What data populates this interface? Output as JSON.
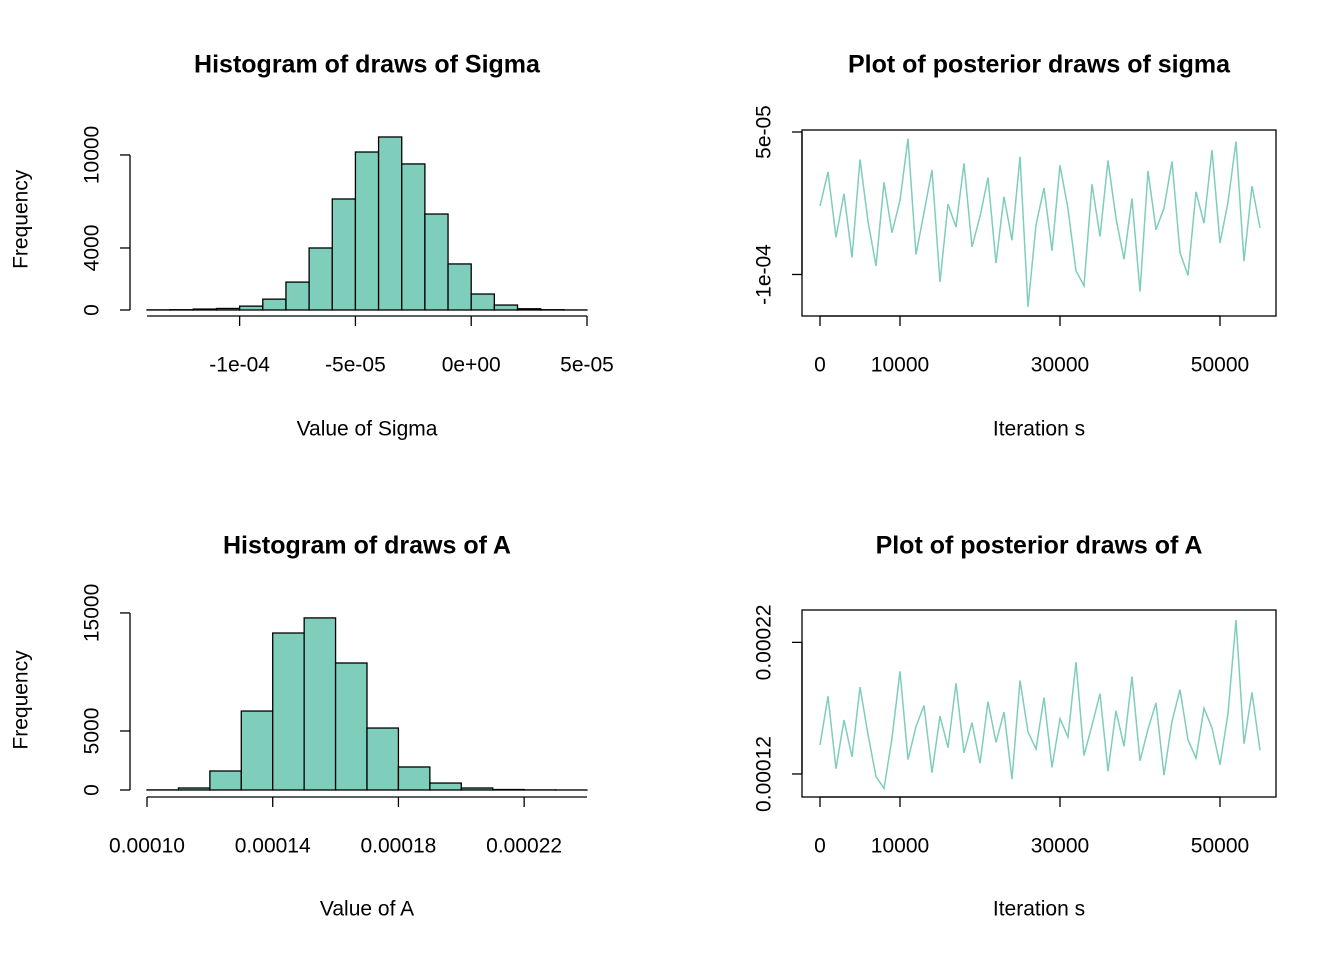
{
  "chart_data": [
    {
      "type": "histogram",
      "title": "Histogram of draws of Sigma",
      "xlabel": "Value of Sigma",
      "ylabel": "Frequency",
      "bins": [
        -0.00014,
        -0.00013,
        -0.00012,
        -0.00011,
        -0.0001,
        -9e-05,
        -8e-05,
        -7e-05,
        -6e-05,
        -5e-05,
        -4e-05,
        -3e-05,
        -2e-05,
        -1e-05,
        0,
        1e-05,
        2e-05,
        3e-05,
        4e-05,
        5e-05
      ],
      "values": [
        10,
        20,
        60,
        100,
        250,
        700,
        1800,
        4000,
        7160,
        10190,
        11160,
        9420,
        6190,
        2970,
        1030,
        320,
        80,
        20,
        5
      ],
      "color": "#7fcdbb",
      "xlim": [
        -0.00014,
        5e-05
      ],
      "ylim": [
        0,
        11700
      ],
      "xticks": [
        {
          "value": -0.0001,
          "label": "-1e-04"
        },
        {
          "value": -5e-05,
          "label": "-5e-05"
        },
        {
          "value": 0,
          "label": "0e+00"
        },
        {
          "value": 5e-05,
          "label": "5e-05"
        }
      ],
      "yticks": [
        0,
        4000,
        10000
      ]
    },
    {
      "type": "line",
      "title": "Plot of posterior draws of sigma",
      "xlabel": "Iteration s",
      "x": [
        0,
        1000,
        2000,
        3000,
        4000,
        5000,
        6000,
        7000,
        8000,
        9000,
        10000,
        11000,
        12000,
        13000,
        14000,
        15000,
        16000,
        17000,
        18000,
        19000,
        20000,
        21000,
        22000,
        23000,
        24000,
        25000,
        26000,
        27000,
        28000,
        29000,
        30000,
        31000,
        32000,
        33000,
        34000,
        35000,
        36000,
        37000,
        38000,
        39000,
        40000,
        41000,
        42000,
        43000,
        44000,
        45000,
        46000,
        47000,
        48000,
        49000,
        50000,
        51000,
        52000,
        53000,
        54000,
        55000
      ],
      "values": [
        -2.8e-05,
        8e-06,
        -6.1e-05,
        -1.5e-05,
        -8.2e-05,
        2.1e-05,
        -4.4e-05,
        -9.1e-05,
        -3e-06,
        -5.6e-05,
        -2.2e-05,
        4.3e-05,
        -7.9e-05,
        -3.5e-05,
        1e-05,
        -0.000108,
        -2.6e-05,
        -5e-05,
        1.7e-05,
        -7.1e-05,
        -3.9e-05,
        2e-06,
        -8.8e-05,
        -1.8e-05,
        -6.4e-05,
        2.4e-05,
        -0.000134,
        -4.8e-05,
        -9e-06,
        -7.5e-05,
        1.5e-05,
        -3.1e-05,
        -9.6e-05,
        -0.000112,
        -5e-06,
        -6e-05,
        2e-05,
        -4.1e-05,
        -8.4e-05,
        -2e-05,
        -0.000118,
        9e-06,
        -5.3e-05,
        -3e-05,
        1.9e-05,
        -7.7e-05,
        -0.000101,
        -1.3e-05,
        -4.6e-05,
        3.1e-05,
        -6.7e-05,
        -2.4e-05,
        4e-05,
        -8.6e-05,
        -7e-06,
        -5.1e-05
      ],
      "color": "#7fcdbb",
      "xlim": [
        -2250,
        57000
      ],
      "ylim": [
        -0.0001437,
        5.21e-05
      ],
      "xticks": [
        0,
        10000,
        30000,
        50000
      ],
      "yticks": [
        {
          "value": -0.0001,
          "label": "-1e-04"
        },
        {
          "value": 5e-05,
          "label": "5e-05"
        }
      ]
    },
    {
      "type": "histogram",
      "title": "Histogram of draws of A",
      "xlabel": "Value of A",
      "ylabel": "Frequency",
      "bins": [
        0.0001,
        0.00011,
        0.00012,
        0.00013,
        0.00014,
        0.00015,
        0.00016,
        0.00017,
        0.00018,
        0.00019,
        0.0002,
        0.00021,
        0.00022,
        0.00023,
        0.00024
      ],
      "values": [
        10,
        170,
        1610,
        6690,
        13300,
        14580,
        10760,
        5250,
        1950,
        590,
        170,
        40,
        10,
        3
      ],
      "color": "#7fcdbb",
      "xlim": [
        0.0001,
        0.00024
      ],
      "ylim": [
        0,
        15250
      ],
      "xticks": [
        {
          "value": 0.0001,
          "label": "0.00010"
        },
        {
          "value": 0.00014,
          "label": "0.00014"
        },
        {
          "value": 0.00018,
          "label": "0.00018"
        },
        {
          "value": 0.00022,
          "label": "0.00022"
        }
      ],
      "yticks": [
        0,
        5000,
        15000
      ]
    },
    {
      "type": "line",
      "title": "Plot of posterior draws of A",
      "xlabel": "Iteration s",
      "x": [
        0,
        1000,
        2000,
        3000,
        4000,
        5000,
        6000,
        7000,
        8000,
        9000,
        10000,
        11000,
        12000,
        13000,
        14000,
        15000,
        16000,
        17000,
        18000,
        19000,
        20000,
        21000,
        22000,
        23000,
        24000,
        25000,
        26000,
        27000,
        28000,
        29000,
        30000,
        31000,
        32000,
        33000,
        34000,
        35000,
        36000,
        37000,
        38000,
        39000,
        40000,
        41000,
        42000,
        43000,
        44000,
        45000,
        46000,
        47000,
        48000,
        49000,
        50000,
        51000,
        52000,
        53000,
        54000,
        55000
      ],
      "values": [
        0.000142,
        0.000179,
        0.000124,
        0.000161,
        0.000133,
        0.000186,
        0.00015,
        0.000118,
        0.000109,
        0.000147,
        0.000198,
        0.000131,
        0.000156,
        0.000172,
        0.000121,
        0.000164,
        0.00014,
        0.000189,
        0.000136,
        0.000159,
        0.000128,
        0.000175,
        0.000144,
        0.000167,
        0.000116,
        0.000191,
        0.000152,
        0.000139,
        0.000178,
        0.000125,
        0.000162,
        0.000148,
        0.000205,
        0.000134,
        0.000157,
        0.000181,
        0.000122,
        0.000168,
        0.000141,
        0.000194,
        0.00013,
        0.000154,
        0.000174,
        0.000119,
        0.00016,
        0.000184,
        0.000146,
        0.000132,
        0.00017,
        0.000155,
        0.000127,
        0.000166,
        0.000237,
        0.000143,
        0.000182,
        0.000138
      ],
      "color": "#7fcdbb",
      "xlim": [
        -2250,
        57000
      ],
      "ylim": [
        0.0001025,
        0.0002446
      ],
      "xticks": [
        0,
        10000,
        30000,
        50000
      ],
      "yticks": [
        {
          "value": 0.00012,
          "label": "0.00012"
        },
        {
          "value": 0.00022,
          "label": "0.00022"
        }
      ]
    }
  ]
}
